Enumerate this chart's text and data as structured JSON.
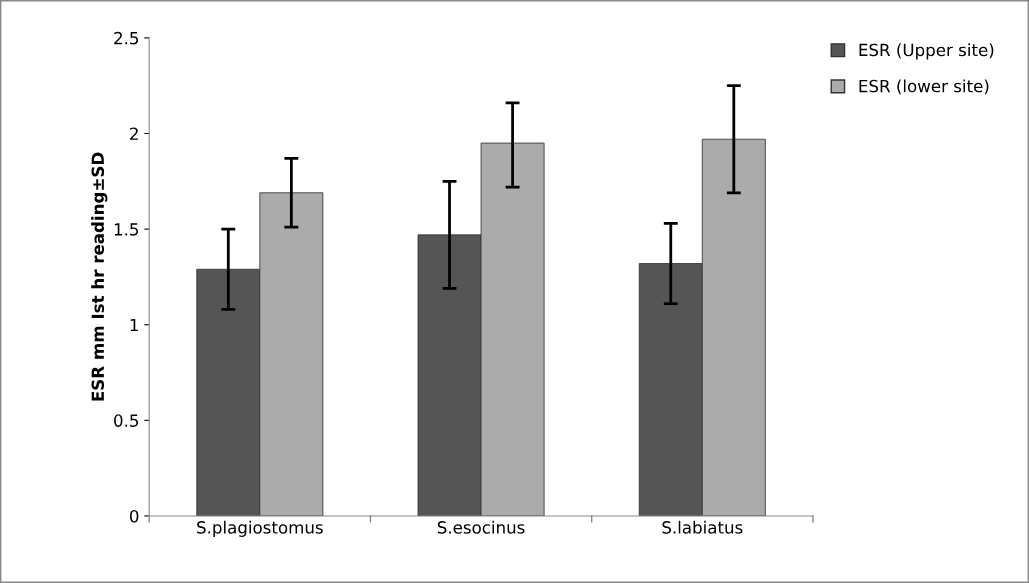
{
  "chart_data": {
    "type": "bar",
    "ylabel": "ESR mm Ist hr reading±SD",
    "categories": [
      "S.plagiostomus",
      "S.esocinus",
      "S.labiatus"
    ],
    "series": [
      {
        "name": "ESR (Upper site)",
        "color": "#555555",
        "values": [
          1.29,
          1.47,
          1.32
        ],
        "errors": [
          [
            1.08,
            1.5
          ],
          [
            1.19,
            1.75
          ],
          [
            1.11,
            1.53
          ]
        ]
      },
      {
        "name": "ESR (lower site)",
        "color": "#ababab",
        "values": [
          1.69,
          1.95,
          1.97
        ],
        "errors": [
          [
            1.51,
            1.87
          ],
          [
            1.72,
            2.16
          ],
          [
            1.69,
            2.25
          ]
        ]
      }
    ],
    "ylim": [
      0,
      2.5
    ],
    "yticks": [
      0,
      0.5,
      1,
      1.5,
      2,
      2.5
    ],
    "grid": false,
    "legend": "top right"
  }
}
